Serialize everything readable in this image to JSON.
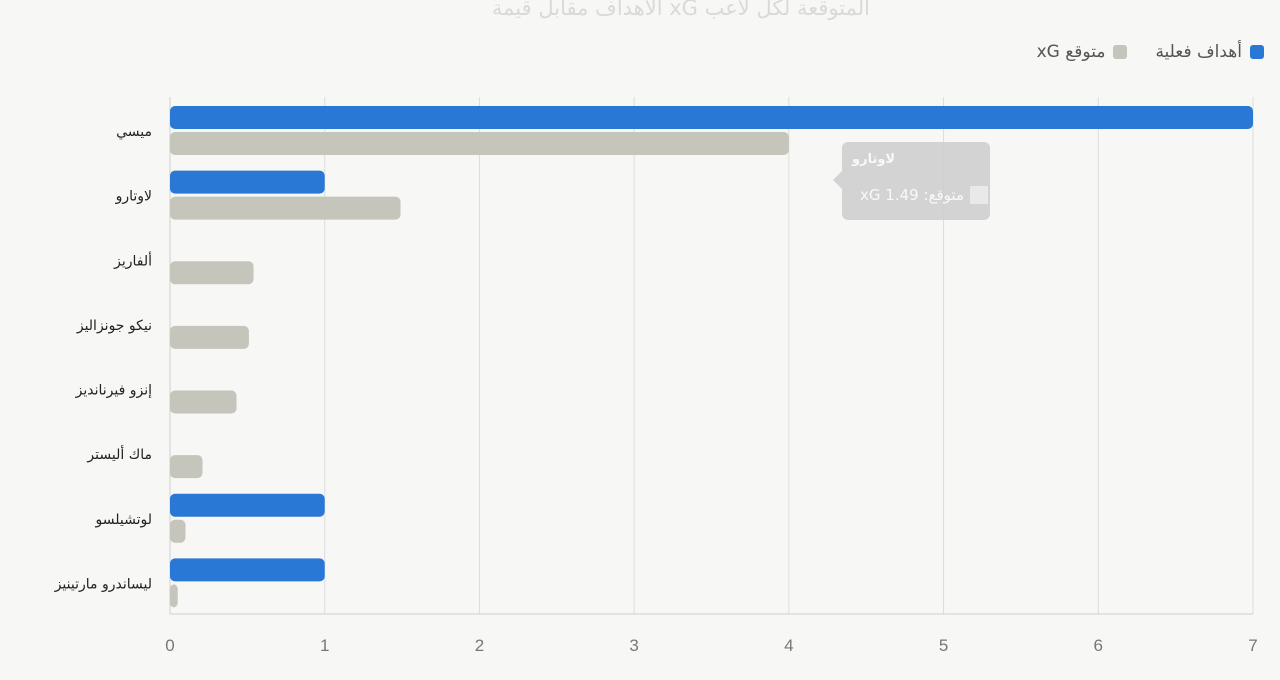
{
  "title": "الأهداف مقابل قيمة xG المتوقعة لكل لاعب",
  "legend": [
    {
      "label": "أهداف فعلية",
      "color": "#2a78d6"
    },
    {
      "label": "xG متوقع",
      "color": "#c5c5bc"
    }
  ],
  "tooltip": {
    "title": "لاوتارو",
    "text": "xG متوقع: 1.49"
  },
  "chart_data": {
    "type": "bar",
    "orientation": "horizontal",
    "categories": [
      "ميسي",
      "لاوتارو",
      "ألفاريز",
      "نيكو جونزاليز",
      "إنزو فيرنانديز",
      "ماك أليستر",
      "لوتشيلسو",
      "ليساندرو مارتينيز"
    ],
    "series": [
      {
        "name": "أهداف فعلية",
        "color": "#2a78d6",
        "values": [
          7,
          1,
          0,
          0,
          0,
          0,
          1,
          1
        ]
      },
      {
        "name": "xG متوقع",
        "color": "#c5c5bc",
        "values": [
          4.0,
          1.49,
          0.54,
          0.51,
          0.43,
          0.21,
          0.1,
          0.05
        ]
      }
    ],
    "xlim": [
      0,
      7
    ],
    "xticks": [
      "0",
      "1",
      "2",
      "3",
      "4",
      "5",
      "6",
      "7"
    ],
    "grid": true,
    "legend_position": "top-right"
  }
}
